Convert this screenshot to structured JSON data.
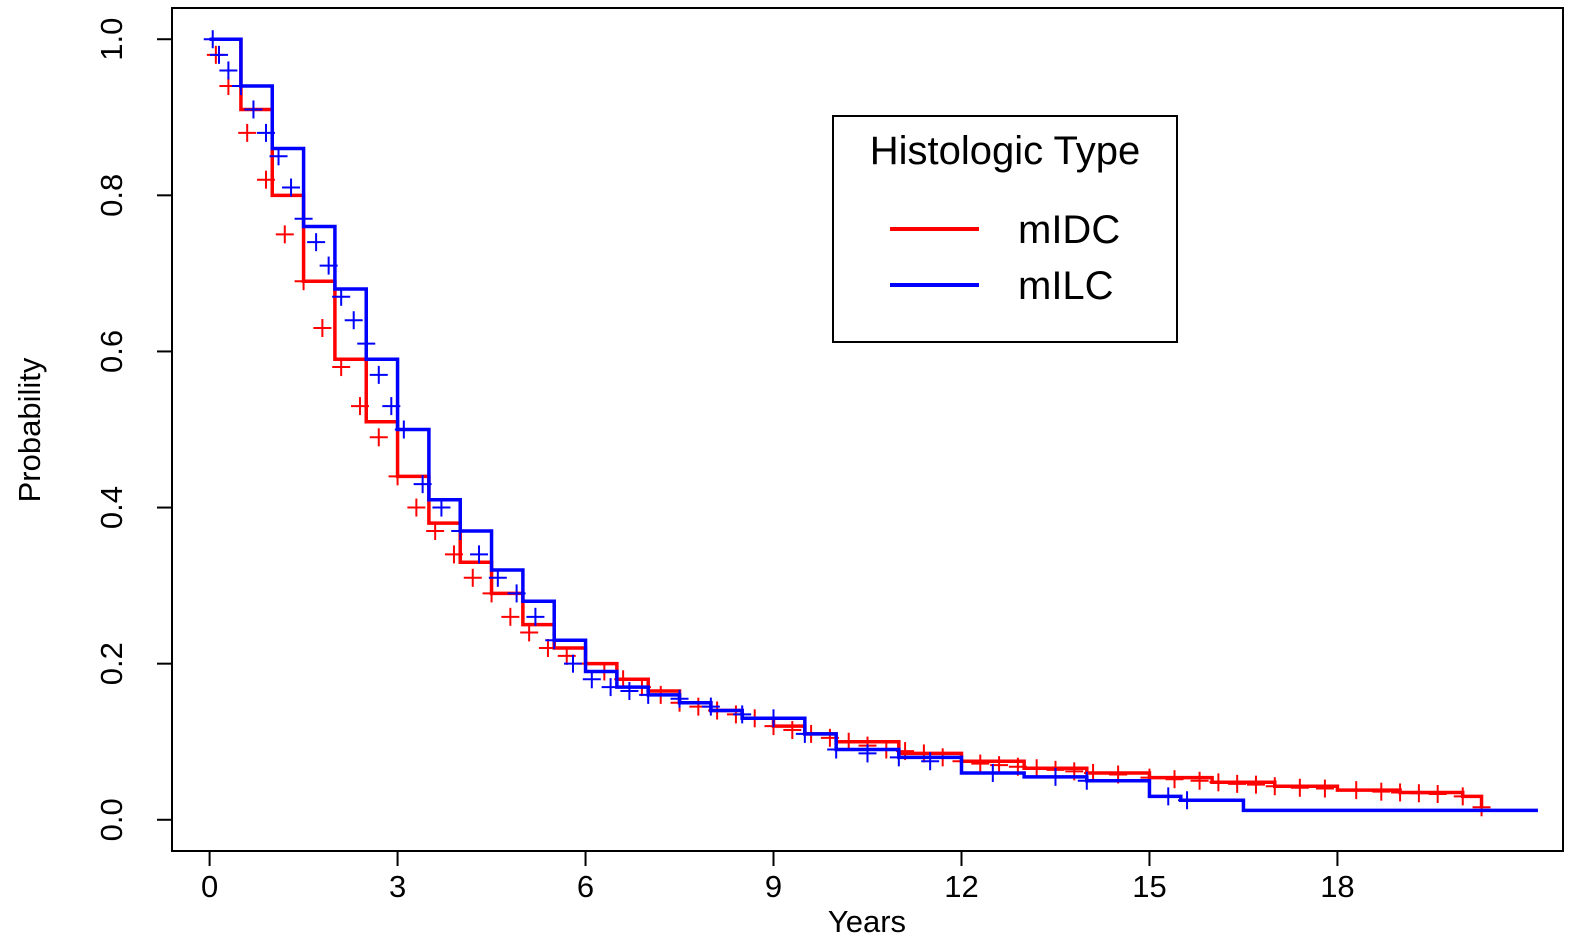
{
  "chart_data": {
    "type": "line",
    "title": "",
    "xlabel": "Years",
    "ylabel": "Probability",
    "xlim": [
      -0.6,
      21.6
    ],
    "ylim": [
      -0.04,
      1.04
    ],
    "x_ticks": [
      0,
      3,
      6,
      9,
      12,
      15,
      18
    ],
    "x_tick_labels": [
      "0",
      "3",
      "6",
      "9",
      "12",
      "15",
      "18"
    ],
    "y_ticks": [
      0.0,
      0.2,
      0.4,
      0.6,
      0.8,
      1.0
    ],
    "y_tick_labels": [
      "0.0",
      "0.2",
      "0.4",
      "0.6",
      "0.8",
      "1.0"
    ],
    "grid": false,
    "legend": {
      "title": "Histologic Type",
      "position": "top-right"
    },
    "series": [
      {
        "name": "mIDC",
        "color": "#ff0000",
        "x": [
          0,
          0.5,
          1,
          1.5,
          2,
          2.5,
          3,
          3.5,
          4,
          4.5,
          5,
          5.5,
          6,
          6.5,
          7,
          7.5,
          8,
          8.5,
          9,
          9.5,
          10,
          11,
          12,
          13,
          14,
          15,
          16,
          17,
          18,
          19,
          20,
          20.3
        ],
        "y": [
          1.0,
          0.91,
          0.8,
          0.69,
          0.59,
          0.51,
          0.44,
          0.38,
          0.33,
          0.29,
          0.25,
          0.22,
          0.2,
          0.18,
          0.165,
          0.15,
          0.14,
          0.13,
          0.12,
          0.11,
          0.1,
          0.085,
          0.075,
          0.066,
          0.06,
          0.054,
          0.048,
          0.043,
          0.038,
          0.035,
          0.03,
          0.016
        ],
        "censor_x": [
          0.1,
          0.3,
          0.6,
          0.9,
          1.2,
          1.5,
          1.8,
          2.1,
          2.4,
          2.7,
          3.0,
          3.3,
          3.6,
          3.9,
          4.2,
          4.5,
          4.8,
          5.1,
          5.4,
          5.7,
          6.0,
          6.3,
          6.6,
          6.9,
          7.2,
          7.5,
          7.8,
          8.1,
          8.4,
          8.7,
          9.0,
          9.3,
          9.6,
          9.9,
          10.2,
          10.5,
          10.8,
          11.1,
          11.4,
          11.7,
          12.0,
          12.3,
          12.6,
          12.9,
          13.2,
          13.5,
          13.8,
          14.1,
          14.5,
          15.0,
          15.4,
          15.8,
          16.1,
          16.4,
          16.7,
          17.0,
          17.4,
          17.8,
          18.3,
          18.7,
          19.0,
          19.3,
          19.6,
          20.0,
          20.3
        ],
        "censor_y": [
          0.98,
          0.94,
          0.88,
          0.82,
          0.75,
          0.69,
          0.63,
          0.58,
          0.53,
          0.49,
          0.44,
          0.4,
          0.37,
          0.34,
          0.31,
          0.29,
          0.26,
          0.24,
          0.22,
          0.21,
          0.2,
          0.19,
          0.18,
          0.17,
          0.16,
          0.15,
          0.145,
          0.14,
          0.135,
          0.13,
          0.12,
          0.115,
          0.11,
          0.105,
          0.1,
          0.095,
          0.09,
          0.088,
          0.085,
          0.08,
          0.075,
          0.072,
          0.07,
          0.068,
          0.066,
          0.064,
          0.062,
          0.06,
          0.058,
          0.054,
          0.052,
          0.05,
          0.048,
          0.046,
          0.045,
          0.043,
          0.041,
          0.04,
          0.038,
          0.036,
          0.035,
          0.034,
          0.033,
          0.03,
          0.016
        ]
      },
      {
        "name": "mILC",
        "color": "#0000ff",
        "x": [
          0,
          0.5,
          1,
          1.5,
          2,
          2.5,
          3,
          3.5,
          4,
          4.5,
          5,
          5.5,
          6,
          6.5,
          7,
          7.5,
          8,
          8.5,
          9,
          9.5,
          10,
          11,
          12,
          13,
          14,
          15,
          15.5,
          16.3,
          16.5,
          18,
          19,
          20,
          21.2
        ],
        "y": [
          1.0,
          0.94,
          0.86,
          0.76,
          0.68,
          0.59,
          0.5,
          0.41,
          0.37,
          0.32,
          0.28,
          0.23,
          0.19,
          0.17,
          0.16,
          0.15,
          0.14,
          0.13,
          0.13,
          0.11,
          0.09,
          0.08,
          0.06,
          0.055,
          0.05,
          0.03,
          0.025,
          0.025,
          0.012,
          0.012,
          0.012,
          0.012,
          0.012
        ],
        "censor_x": [
          0.05,
          0.15,
          0.3,
          0.5,
          0.7,
          0.9,
          1.1,
          1.3,
          1.5,
          1.7,
          1.9,
          2.1,
          2.3,
          2.5,
          2.7,
          2.9,
          3.1,
          3.4,
          3.7,
          4.0,
          4.3,
          4.6,
          4.9,
          5.2,
          5.5,
          5.8,
          6.1,
          6.4,
          6.7,
          7.0,
          7.5,
          8.0,
          8.5,
          9.0,
          9.5,
          10.0,
          10.5,
          11.0,
          11.5,
          12.5,
          13.5,
          14.0,
          15.3,
          15.6
        ],
        "censor_y": [
          1.0,
          0.98,
          0.96,
          0.94,
          0.91,
          0.88,
          0.85,
          0.81,
          0.77,
          0.74,
          0.71,
          0.67,
          0.64,
          0.61,
          0.57,
          0.53,
          0.5,
          0.43,
          0.4,
          0.37,
          0.34,
          0.31,
          0.29,
          0.26,
          0.23,
          0.2,
          0.18,
          0.17,
          0.165,
          0.16,
          0.155,
          0.145,
          0.135,
          0.13,
          0.11,
          0.09,
          0.085,
          0.08,
          0.075,
          0.06,
          0.055,
          0.05,
          0.03,
          0.025
        ]
      }
    ]
  }
}
